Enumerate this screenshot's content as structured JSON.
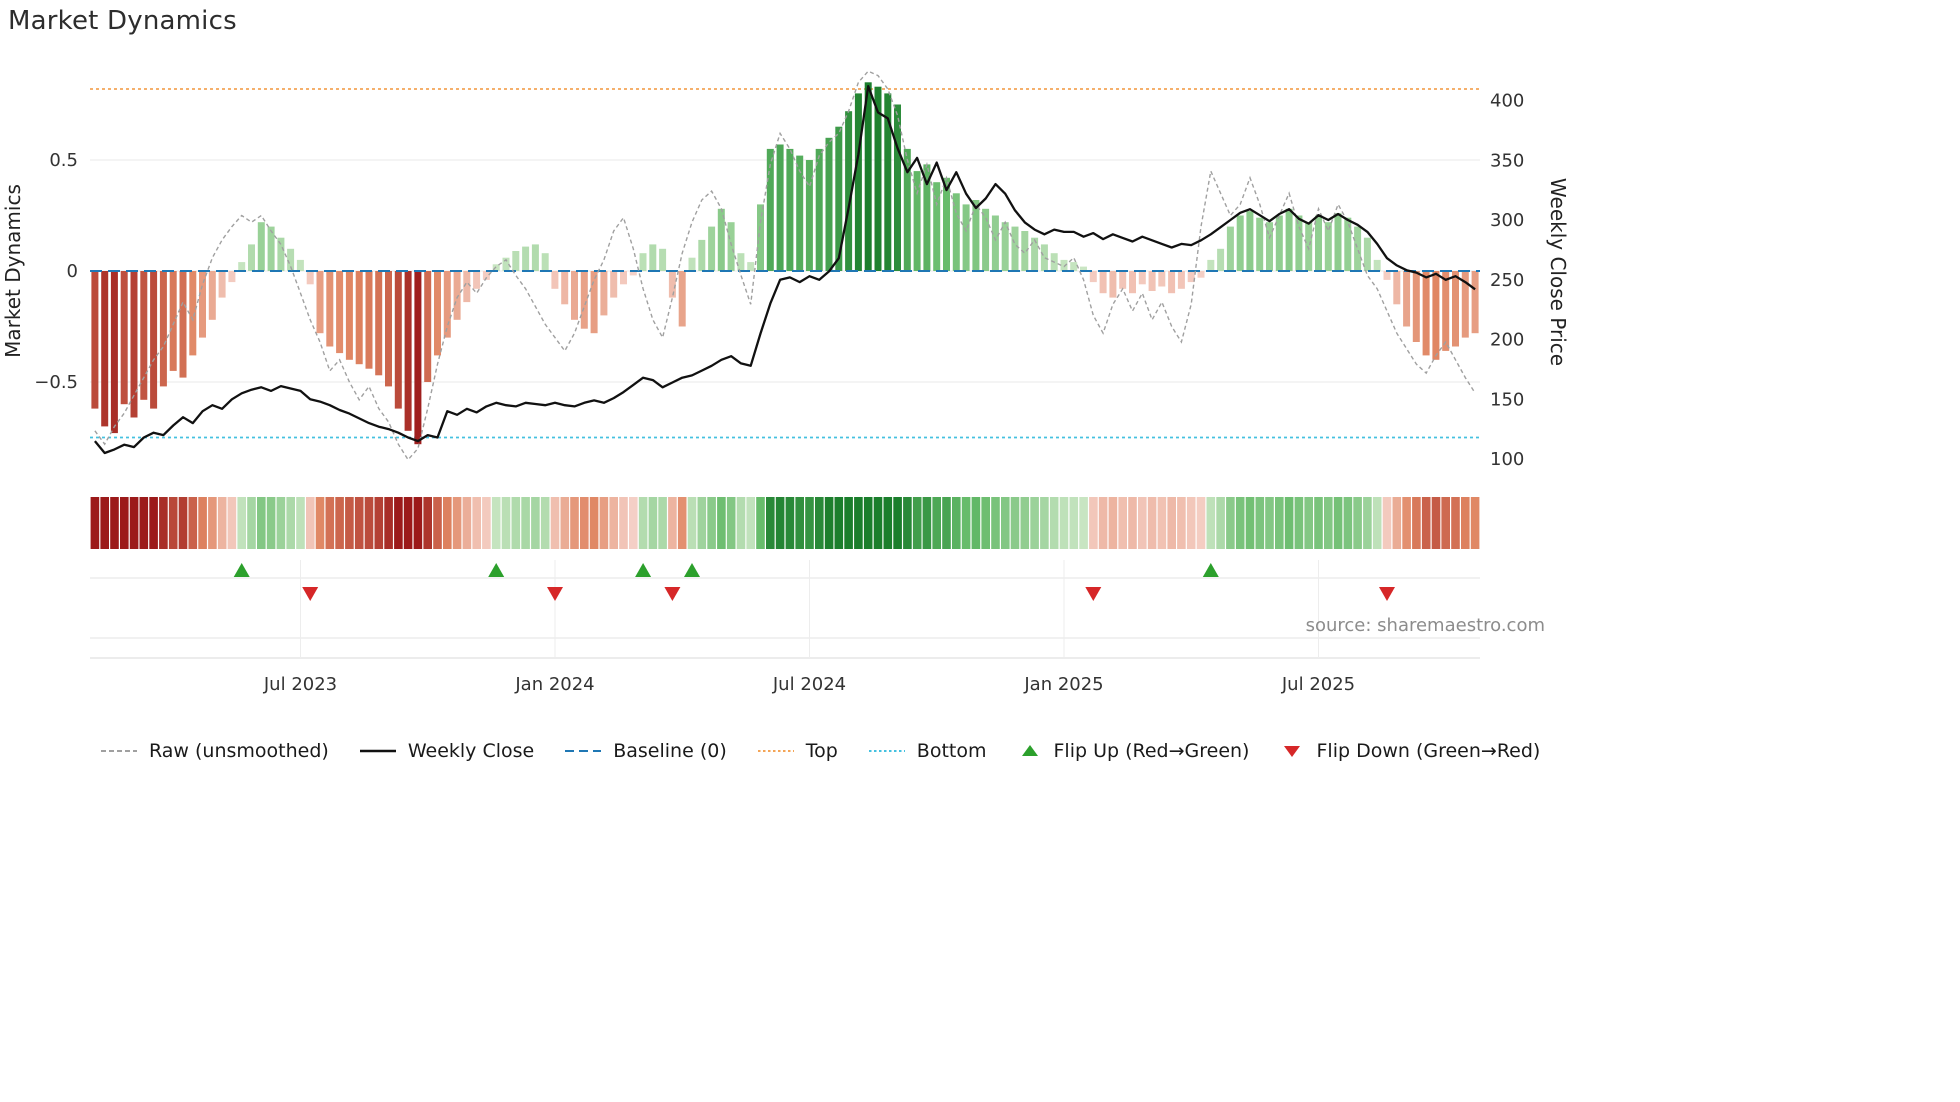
{
  "page": {
    "title": "Market Dynamics",
    "source_note": "source: sharemaestro.com"
  },
  "colors": {
    "baseline": "#1f77b4",
    "top": "#f4a557",
    "bottom": "#45c1e0",
    "raw": "#a0a0a0",
    "close": "#111111",
    "flip_up": "#2ca02c",
    "flip_down": "#d62728",
    "bar_negative_light": "#f6d5cd",
    "bar_negative_mid": "#e08663",
    "bar_negative_dark": "#9c1a1a",
    "bar_positive_light": "#cfe8c8",
    "bar_positive_mid": "#66bb6a",
    "bar_positive_dark": "#1b7e2c"
  },
  "chart_data": {
    "type": "bar+line combo (weekly oscillator bars, raw dashed line, close price line, flip markers, heatmap strip)",
    "title": "Market Dynamics",
    "left_axis": {
      "label": "Market Dynamics",
      "ticks": [
        "0.5",
        "0",
        "−0.5"
      ],
      "tick_values": [
        0.5,
        0,
        -0.5
      ],
      "range": [
        -0.95,
        0.95
      ]
    },
    "right_axis": {
      "label": "Weekly Close Price",
      "ticks": [
        400,
        350,
        300,
        250,
        200,
        150,
        100
      ],
      "range": [
        90,
        430
      ]
    },
    "x_ticks": [
      {
        "label": "Jul 2023",
        "index": 21
      },
      {
        "label": "Jan 2024",
        "index": 47
      },
      {
        "label": "Jul 2024",
        "index": 73
      },
      {
        "label": "Jan 2025",
        "index": 99
      },
      {
        "label": "Jul 2025",
        "index": 125
      }
    ],
    "reference_lines": {
      "baseline": 0,
      "top": 0.82,
      "bottom": -0.75
    },
    "series": {
      "oscillator": [
        -0.62,
        -0.7,
        -0.73,
        -0.6,
        -0.66,
        -0.58,
        -0.62,
        -0.52,
        -0.45,
        -0.48,
        -0.38,
        -0.3,
        -0.22,
        -0.12,
        -0.05,
        0.04,
        0.12,
        0.22,
        0.2,
        0.15,
        0.1,
        0.05,
        -0.06,
        -0.28,
        -0.34,
        -0.37,
        -0.4,
        -0.42,
        -0.44,
        -0.47,
        -0.52,
        -0.62,
        -0.72,
        -0.78,
        -0.5,
        -0.38,
        -0.3,
        -0.22,
        -0.14,
        -0.08,
        -0.04,
        0.03,
        0.06,
        0.09,
        0.11,
        0.12,
        0.08,
        -0.08,
        -0.15,
        -0.22,
        -0.26,
        -0.28,
        -0.2,
        -0.12,
        -0.06,
        -0.02,
        0.08,
        0.12,
        0.1,
        -0.12,
        -0.25,
        0.06,
        0.14,
        0.2,
        0.28,
        0.22,
        0.08,
        0.04,
        0.3,
        0.55,
        0.57,
        0.55,
        0.52,
        0.5,
        0.55,
        0.6,
        0.65,
        0.72,
        0.8,
        0.85,
        0.83,
        0.8,
        0.75,
        0.55,
        0.45,
        0.48,
        0.4,
        0.42,
        0.35,
        0.3,
        0.32,
        0.28,
        0.25,
        0.22,
        0.2,
        0.18,
        0.15,
        0.12,
        0.08,
        0.05,
        0.04,
        0.02,
        -0.05,
        -0.1,
        -0.12,
        -0.08,
        -0.1,
        -0.06,
        -0.09,
        -0.07,
        -0.1,
        -0.08,
        -0.05,
        -0.03,
        0.05,
        0.1,
        0.2,
        0.25,
        0.27,
        0.24,
        0.22,
        0.25,
        0.28,
        0.25,
        0.22,
        0.25,
        0.22,
        0.26,
        0.24,
        0.2,
        0.15,
        0.05,
        -0.04,
        -0.15,
        -0.25,
        -0.32,
        -0.38,
        -0.4,
        -0.36,
        -0.34,
        -0.3,
        -0.28
      ],
      "raw": [
        -0.72,
        -0.78,
        -0.7,
        -0.64,
        -0.56,
        -0.48,
        -0.4,
        -0.34,
        -0.24,
        -0.14,
        -0.22,
        -0.06,
        0.06,
        0.14,
        0.2,
        0.25,
        0.22,
        0.25,
        0.18,
        0.12,
        0.02,
        -0.1,
        -0.22,
        -0.32,
        -0.45,
        -0.4,
        -0.5,
        -0.58,
        -0.52,
        -0.62,
        -0.68,
        -0.78,
        -0.85,
        -0.8,
        -0.62,
        -0.42,
        -0.25,
        -0.12,
        -0.05,
        -0.1,
        -0.03,
        0.02,
        0.05,
        -0.02,
        -0.08,
        -0.16,
        -0.24,
        -0.3,
        -0.36,
        -0.28,
        -0.16,
        -0.04,
        0.05,
        0.18,
        0.24,
        0.1,
        -0.08,
        -0.22,
        -0.3,
        -0.12,
        0.08,
        0.22,
        0.32,
        0.36,
        0.28,
        0.12,
        -0.02,
        -0.15,
        0.22,
        0.48,
        0.62,
        0.55,
        0.45,
        0.38,
        0.52,
        0.58,
        0.62,
        0.72,
        0.85,
        0.9,
        0.88,
        0.82,
        0.7,
        0.5,
        0.35,
        0.48,
        0.3,
        0.42,
        0.26,
        0.18,
        0.3,
        0.24,
        0.14,
        0.22,
        0.12,
        0.08,
        0.14,
        0.06,
        0.04,
        0.02,
        0.06,
        -0.04,
        -0.2,
        -0.28,
        -0.15,
        -0.08,
        -0.18,
        -0.1,
        -0.22,
        -0.14,
        -0.25,
        -0.32,
        -0.15,
        0.2,
        0.45,
        0.35,
        0.25,
        0.3,
        0.42,
        0.3,
        0.15,
        0.25,
        0.35,
        0.2,
        0.1,
        0.28,
        0.18,
        0.3,
        0.22,
        0.1,
        -0.02,
        -0.08,
        -0.18,
        -0.28,
        -0.35,
        -0.42,
        -0.46,
        -0.38,
        -0.32,
        -0.4,
        -0.48,
        -0.55
      ],
      "weekly_close": [
        115,
        105,
        108,
        112,
        110,
        118,
        122,
        120,
        128,
        135,
        130,
        140,
        145,
        142,
        150,
        155,
        158,
        160,
        157,
        161,
        159,
        157,
        150,
        148,
        145,
        141,
        138,
        134,
        130,
        127,
        125,
        122,
        118,
        115,
        120,
        118,
        140,
        137,
        142,
        139,
        144,
        147,
        145,
        144,
        147,
        146,
        145,
        147,
        145,
        144,
        147,
        149,
        147,
        151,
        156,
        162,
        168,
        166,
        160,
        164,
        168,
        170,
        174,
        178,
        183,
        186,
        180,
        178,
        205,
        230,
        250,
        252,
        248,
        253,
        250,
        257,
        268,
        310,
        355,
        412,
        390,
        385,
        360,
        340,
        352,
        330,
        348,
        325,
        340,
        322,
        310,
        318,
        330,
        322,
        308,
        298,
        292,
        288,
        292,
        290,
        290,
        286,
        289,
        284,
        288,
        285,
        282,
        286,
        283,
        280,
        277,
        280,
        279,
        283,
        288,
        294,
        300,
        306,
        309,
        304,
        299,
        305,
        309,
        301,
        297,
        304,
        300,
        305,
        300,
        296,
        290,
        280,
        268,
        262,
        258,
        256,
        252,
        255,
        250,
        253,
        248,
        242
      ]
    },
    "flip_up_indices": [
      15,
      41,
      56,
      61,
      114
    ],
    "flip_down_indices": [
      22,
      47,
      59,
      102,
      132
    ]
  },
  "legend": {
    "items": [
      {
        "label": "Raw (unsmoothed)",
        "glyph": "dashed-line",
        "color": "#a0a0a0"
      },
      {
        "label": "Weekly Close",
        "glyph": "solid-line",
        "color": "#111111"
      },
      {
        "label": "Baseline (0)",
        "glyph": "longdash-line",
        "color": "#1f77b4"
      },
      {
        "label": "Top",
        "glyph": "dotted-line",
        "color": "#f4a557"
      },
      {
        "label": "Bottom",
        "glyph": "dotted-line",
        "color": "#45c1e0"
      },
      {
        "label": "Flip Up (Red→Green)",
        "glyph": "triangle-up",
        "color": "#2ca02c"
      },
      {
        "label": "Flip Down (Green→Red)",
        "glyph": "triangle-down",
        "color": "#d62728"
      }
    ]
  }
}
